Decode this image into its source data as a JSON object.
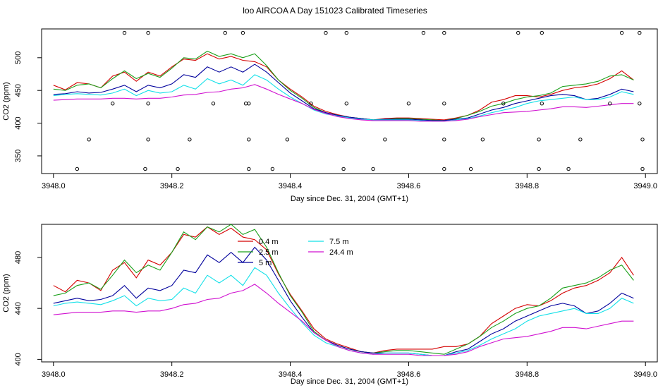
{
  "title": "loo AIRCOA A  Day 151023  Calibrated Timeseries",
  "colors": {
    "s0": "#d40000",
    "s1": "#1aa01a",
    "s2": "#00009c",
    "s3": "#12e0e8",
    "s4": "#d010d0",
    "points": "#000000",
    "axis": "#000000"
  },
  "chart_data": [
    {
      "type": "line",
      "xlabel": "Day since Dec. 31, 2004 (GMT+1)",
      "ylabel": "CO2 (ppm)",
      "xlim": [
        3947.98,
        3949.02
      ],
      "ylim": [
        323,
        544
      ],
      "xticks": [
        3948.0,
        3948.2,
        3948.4,
        3948.6,
        3948.8,
        3949.0
      ],
      "xtick_labels": [
        "3948.0",
        "3948.2",
        "3948.4",
        "3948.6",
        "3948.8",
        "3949.0"
      ],
      "yticks": [
        350,
        400,
        450,
        500
      ],
      "ytick_labels": [
        "350",
        "400",
        "450",
        "500"
      ],
      "grid": false,
      "legend": "none",
      "x": [
        3948.0,
        3948.02,
        3948.04,
        3948.06,
        3948.08,
        3948.1,
        3948.12,
        3948.14,
        3948.16,
        3948.18,
        3948.2,
        3948.22,
        3948.24,
        3948.26,
        3948.28,
        3948.3,
        3948.32,
        3948.34,
        3948.36,
        3948.38,
        3948.4,
        3948.42,
        3948.44,
        3948.46,
        3948.48,
        3948.5,
        3948.52,
        3948.54,
        3948.56,
        3948.58,
        3948.6,
        3948.62,
        3948.64,
        3948.66,
        3948.68,
        3948.7,
        3948.72,
        3948.74,
        3948.76,
        3948.78,
        3948.8,
        3948.82,
        3948.84,
        3948.86,
        3948.88,
        3948.9,
        3948.92,
        3948.94,
        3948.96,
        3948.98
      ],
      "series": [
        {
          "values": [
            458,
            451,
            462,
            460,
            454,
            472,
            478,
            464,
            478,
            472,
            486,
            498,
            496,
            506,
            498,
            502,
            496,
            494,
            486,
            466,
            452,
            440,
            426,
            418,
            413,
            409,
            407,
            405,
            407,
            408,
            408,
            407,
            406,
            405,
            408,
            412,
            420,
            432,
            436,
            442,
            442,
            440,
            444,
            450,
            454,
            456,
            460,
            468,
            480,
            466
          ]
        },
        {
          "values": [
            452,
            450,
            458,
            460,
            454,
            468,
            480,
            468,
            476,
            470,
            484,
            500,
            498,
            510,
            502,
            506,
            500,
            506,
            488,
            466,
            450,
            438,
            424,
            416,
            412,
            409,
            407,
            405,
            406,
            407,
            407,
            406,
            405,
            404,
            407,
            412,
            418,
            426,
            430,
            436,
            440,
            442,
            446,
            456,
            458,
            460,
            464,
            472,
            474,
            466
          ]
        },
        {
          "values": [
            444,
            445,
            448,
            446,
            447,
            452,
            458,
            448,
            458,
            454,
            460,
            474,
            470,
            486,
            478,
            486,
            478,
            490,
            478,
            462,
            446,
            434,
            422,
            416,
            412,
            409,
            407,
            405,
            406,
            406,
            406,
            405,
            404,
            404,
            406,
            408,
            414,
            420,
            424,
            430,
            434,
            438,
            442,
            444,
            442,
            436,
            438,
            444,
            452,
            448
          ]
        },
        {
          "values": [
            442,
            444,
            445,
            444,
            443,
            446,
            452,
            442,
            450,
            446,
            448,
            458,
            452,
            468,
            460,
            466,
            458,
            474,
            466,
            452,
            440,
            430,
            420,
            414,
            411,
            408,
            406,
            405,
            405,
            405,
            405,
            404,
            403,
            403,
            405,
            407,
            411,
            416,
            420,
            424,
            430,
            434,
            436,
            438,
            440,
            436,
            436,
            440,
            448,
            444
          ]
        },
        {
          "values": [
            435,
            436,
            437,
            437,
            437,
            438,
            438,
            437,
            438,
            438,
            440,
            443,
            444,
            447,
            448,
            452,
            454,
            459,
            452,
            444,
            437,
            430,
            421,
            415,
            410,
            407,
            405,
            404,
            404,
            404,
            404,
            403,
            403,
            403,
            404,
            406,
            410,
            413,
            416,
            417,
            418,
            420,
            422,
            425,
            425,
            424,
            426,
            428,
            430,
            430
          ]
        }
      ],
      "points": {
        "x": [
          3948.04,
          3948.06,
          3948.1,
          3948.12,
          3948.155,
          3948.16,
          3948.16,
          3948.16,
          3948.21,
          3948.23,
          3948.27,
          3948.29,
          3948.32,
          3948.325,
          3948.33,
          3948.33,
          3948.33,
          3948.37,
          3948.395,
          3948.435,
          3948.46,
          3948.49,
          3948.49,
          3948.495,
          3948.495,
          3948.54,
          3948.56,
          3948.6,
          3948.625,
          3948.66,
          3948.66,
          3948.66,
          3948.66,
          3948.705,
          3948.725,
          3948.76,
          3948.785,
          3948.82,
          3948.82,
          3948.825,
          3948.825,
          3948.87,
          3948.89,
          3948.94,
          3948.96,
          3948.99,
          3948.99,
          3948.995,
          3948.995
        ],
        "y": [
          330,
          375,
          430,
          538,
          330,
          375,
          430,
          538,
          330,
          375,
          430,
          538,
          538,
          430,
          375,
          330,
          430,
          330,
          375,
          430,
          538,
          330,
          375,
          430,
          538,
          330,
          375,
          430,
          538,
          538,
          430,
          375,
          330,
          330,
          375,
          430,
          538,
          330,
          375,
          430,
          538,
          330,
          375,
          430,
          538,
          538,
          430,
          375,
          330
        ]
      }
    },
    {
      "type": "line",
      "xlabel": "Day since Dec. 31, 2004 (GMT+1)",
      "ylabel": "CO2 (ppm)",
      "xlim": [
        3947.98,
        3949.02
      ],
      "ylim": [
        398,
        506
      ],
      "xticks": [
        3948.0,
        3948.2,
        3948.4,
        3948.6,
        3948.8,
        3949.0
      ],
      "xtick_labels": [
        "3948.0",
        "3948.2",
        "3948.4",
        "3948.6",
        "3948.8",
        "3949.0"
      ],
      "yticks": [
        400,
        440,
        480
      ],
      "ytick_labels": [
        "400",
        "440",
        "480"
      ],
      "grid": false,
      "legend": "top-center",
      "x": [
        3948.0,
        3948.02,
        3948.04,
        3948.06,
        3948.08,
        3948.1,
        3948.12,
        3948.14,
        3948.16,
        3948.18,
        3948.2,
        3948.22,
        3948.24,
        3948.26,
        3948.28,
        3948.3,
        3948.32,
        3948.34,
        3948.36,
        3948.38,
        3948.4,
        3948.42,
        3948.44,
        3948.46,
        3948.48,
        3948.5,
        3948.52,
        3948.54,
        3948.56,
        3948.58,
        3948.6,
        3948.62,
        3948.64,
        3948.66,
        3948.68,
        3948.7,
        3948.72,
        3948.74,
        3948.76,
        3948.78,
        3948.8,
        3948.82,
        3948.84,
        3948.86,
        3948.88,
        3948.9,
        3948.92,
        3948.94,
        3948.96,
        3948.98
      ],
      "series": [
        {
          "name": "0.4 m",
          "values": [
            458,
            453,
            462,
            460,
            454,
            470,
            476,
            464,
            478,
            474,
            484,
            498,
            496,
            504,
            498,
            503,
            496,
            494,
            486,
            467,
            451,
            438,
            424,
            416,
            412,
            409,
            406,
            405,
            407,
            408,
            408,
            408,
            408,
            410,
            410,
            412,
            418,
            428,
            434,
            440,
            443,
            442,
            446,
            452,
            456,
            458,
            462,
            468,
            480,
            466
          ]
        },
        {
          "name": "2.5 m",
          "values": [
            450,
            452,
            458,
            460,
            455,
            466,
            478,
            468,
            474,
            470,
            484,
            500,
            494,
            504,
            500,
            506,
            498,
            502,
            488,
            468,
            450,
            437,
            422,
            415,
            411,
            408,
            406,
            405,
            406,
            407,
            407,
            406,
            405,
            404,
            408,
            412,
            418,
            425,
            430,
            436,
            440,
            442,
            448,
            456,
            458,
            460,
            464,
            470,
            474,
            462
          ]
        },
        {
          "name": "5 m",
          "values": [
            444,
            446,
            448,
            446,
            447,
            450,
            458,
            448,
            456,
            454,
            458,
            470,
            468,
            482,
            476,
            484,
            476,
            488,
            478,
            462,
            446,
            433,
            421,
            415,
            411,
            408,
            406,
            405,
            405,
            405,
            405,
            404,
            403,
            403,
            406,
            408,
            414,
            420,
            424,
            430,
            434,
            438,
            442,
            444,
            442,
            436,
            438,
            444,
            452,
            448
          ]
        },
        {
          "name": "7.5 m",
          "values": [
            442,
            444,
            445,
            444,
            443,
            446,
            450,
            442,
            448,
            446,
            447,
            456,
            452,
            466,
            460,
            466,
            458,
            472,
            466,
            452,
            440,
            429,
            419,
            413,
            410,
            407,
            405,
            404,
            405,
            405,
            405,
            404,
            403,
            403,
            405,
            407,
            411,
            416,
            420,
            424,
            430,
            434,
            436,
            438,
            440,
            436,
            436,
            440,
            448,
            444
          ]
        },
        {
          "name": "24.4 m",
          "values": [
            435,
            436,
            437,
            437,
            437,
            438,
            438,
            437,
            438,
            438,
            440,
            443,
            444,
            447,
            448,
            452,
            454,
            459,
            452,
            444,
            437,
            430,
            421,
            415,
            410,
            407,
            405,
            404,
            404,
            404,
            404,
            403,
            403,
            403,
            404,
            406,
            410,
            413,
            416,
            417,
            418,
            420,
            422,
            425,
            425,
            424,
            426,
            428,
            430,
            430
          ]
        }
      ]
    }
  ]
}
